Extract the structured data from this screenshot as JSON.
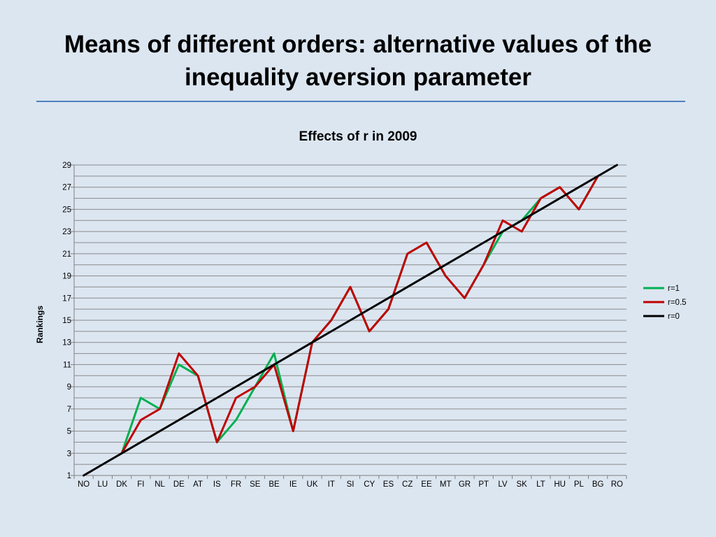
{
  "slide": {
    "title": "Means of different orders: alternative values of the inequality aversion parameter"
  },
  "chart_data": {
    "type": "line",
    "title": "Effects of r in 2009",
    "xlabel": "",
    "ylabel": "Rankings",
    "categories": [
      "NO",
      "LU",
      "DK",
      "FI",
      "NL",
      "DE",
      "AT",
      "IS",
      "FR",
      "SE",
      "BE",
      "IE",
      "UK",
      "IT",
      "SI",
      "CY",
      "ES",
      "CZ",
      "EE",
      "MT",
      "GR",
      "PT",
      "LV",
      "SK",
      "LT",
      "HU",
      "PL",
      "BG",
      "RO"
    ],
    "ylim": [
      1,
      29
    ],
    "yticks": [
      1,
      3,
      5,
      7,
      9,
      11,
      13,
      15,
      17,
      19,
      21,
      23,
      25,
      27,
      29
    ],
    "grid": true,
    "legend_position": "right",
    "series": [
      {
        "name": "r=1",
        "color": "#00b050",
        "values": [
          null,
          null,
          3,
          8,
          7,
          11,
          10,
          4,
          6,
          9,
          12,
          5,
          13,
          15,
          18,
          14,
          16,
          21,
          22,
          19,
          17,
          20,
          23,
          24,
          26,
          27,
          25,
          28,
          null
        ]
      },
      {
        "name": "r=0.5",
        "color": "#c00000",
        "values": [
          null,
          null,
          3,
          6,
          7,
          12,
          10,
          4,
          8,
          9,
          11,
          5,
          13,
          15,
          18,
          14,
          16,
          21,
          22,
          19,
          17,
          20,
          24,
          23,
          26,
          27,
          25,
          28,
          null
        ]
      },
      {
        "name": "r=0",
        "color": "#000000",
        "values": [
          1,
          2,
          3,
          4,
          5,
          6,
          7,
          8,
          9,
          10,
          11,
          12,
          13,
          14,
          15,
          16,
          17,
          18,
          19,
          20,
          21,
          22,
          23,
          24,
          25,
          26,
          27,
          28,
          29
        ]
      }
    ]
  }
}
